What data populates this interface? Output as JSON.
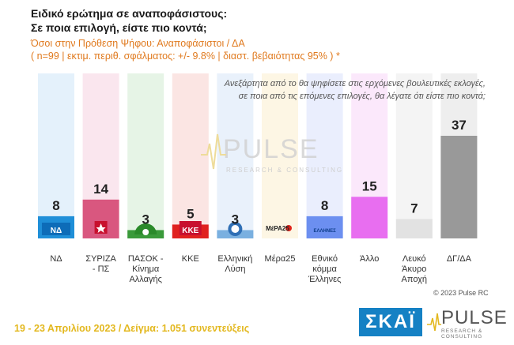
{
  "header": {
    "title_line1": "Ειδικό ερώτημα σε αναποφάσιστους:",
    "title_line2": "Σε ποια επιλογή, είστε πιο κοντά;",
    "subtitle_line1": "Όσοι στην Πρόθεση Ψήφου: Αναποφάσιστοι / ΔΑ",
    "subtitle_line2": "( n=99  |  εκτιμ. περιθ. σφάλματος: +/- 9.8%  |  διαστ. βεβαιότητας 95% ) *"
  },
  "question": {
    "line1": "Ανεξάρτητα από το θα ψηφίσετε στις ερχόμενες βουλευτικές εκλογές,",
    "line2": "σε ποια από τις επόμενες επιλογές, θα λέγατε ότι είστε πιο κοντά;"
  },
  "watermark": {
    "word": "PULSE",
    "tagline": "RESEARCH & CONSULTING"
  },
  "chart_data": {
    "type": "bar",
    "categories": [
      "ΝΔ",
      "ΣΥΡΙΖΑ - ΠΣ",
      "ΠΑΣΟΚ - Κίνημα Αλλαγής",
      "ΚΚΕ",
      "Ελληνική Λύση",
      "Μέρα25",
      "Εθνικό κόμμα Έλληνες",
      "Άλλο",
      "Λευκό Άκυρο Αποχή",
      "ΔΓ/ΔΑ"
    ],
    "category_lines": [
      [
        "ΝΔ"
      ],
      [
        "ΣΥΡΙΖΑ",
        "- ΠΣ"
      ],
      [
        "ΠΑΣΟΚ -",
        "Κίνημα",
        "Αλλαγής"
      ],
      [
        "ΚΚΕ"
      ],
      [
        "Ελληνική",
        "Λύση"
      ],
      [
        "Μέρα25"
      ],
      [
        "Εθνικό",
        "κόμμα",
        "Έλληνες"
      ],
      [
        "Άλλο"
      ],
      [
        "Λευκό",
        "Άκυρο",
        "Αποχή"
      ],
      [
        "ΔΓ/ΔΑ"
      ]
    ],
    "values": [
      8,
      14,
      3,
      5,
      3,
      null,
      8,
      15,
      7,
      37
    ],
    "value_labels": [
      "8",
      "14",
      "3",
      "5",
      "3",
      "",
      "8",
      "15",
      "7",
      "37"
    ],
    "bar_colors": [
      "#1f8fd8",
      "#d9577f",
      "#3a9a3a",
      "#e0211f",
      "#7ab0e0",
      "#ff9a73",
      "#6c8ff0",
      "#e86ef0",
      "#e2e2e2",
      "#999999"
    ],
    "column_colors": [
      "#e4f1fb",
      "#fae6ee",
      "#e6f4e6",
      "#fbe5e3",
      "#e9f1fb",
      "#fdf6e4",
      "#eaeefd",
      "#fbe8fb",
      "#f4f4f4",
      "#eeeeee"
    ],
    "icons": [
      "nd-logo-icon",
      "syriza-logo-icon",
      "pasok-logo-icon",
      "kke-logo-icon",
      "elliniki-lysi-logo-icon",
      "mera25-logo-icon",
      "ethniko-komma-ellines-logo-icon",
      "",
      "",
      ""
    ],
    "logo_texts": [
      "ΝΔ",
      "",
      "",
      "ΚΚΕ",
      "",
      "ΜέΡΑ25",
      "ΕΛΛΗΝΕΣ",
      "",
      "",
      ""
    ],
    "ylim": [
      0,
      40
    ]
  },
  "footer": {
    "fieldwork": "19 - 23  Απριλίου  2023  /  Δείγμα:  1.051 συνεντεύξεις",
    "copyright": "© 2023 Pulse RC",
    "skai_logo": "ΣΚΑΪ",
    "pulse_logo": "PULSE",
    "pulse_tagline": "RESEARCH & CONSULTING"
  }
}
